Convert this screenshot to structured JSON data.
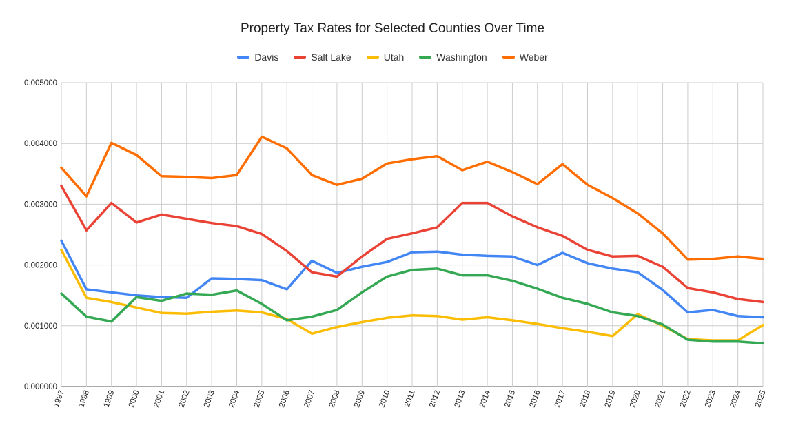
{
  "chart_data": {
    "type": "line",
    "title": "Property Tax Rates for Selected Counties Over Time",
    "xlabel": "",
    "ylabel": "",
    "x": [
      "1997",
      "1998",
      "1999",
      "2000",
      "2001",
      "2002",
      "2003",
      "2004",
      "2005",
      "2006",
      "2007",
      "2008",
      "2009",
      "2010",
      "2011",
      "2012",
      "2013",
      "2014",
      "2015",
      "2016",
      "2017",
      "2018",
      "2019",
      "2020",
      "2021",
      "2022",
      "2023",
      "2024",
      "2025"
    ],
    "ylim": [
      0,
      0.005
    ],
    "yticks": [
      "0.000000",
      "0.001000",
      "0.002000",
      "0.003000",
      "0.004000",
      "0.005000"
    ],
    "grid": true,
    "legend_position": "top",
    "series": [
      {
        "name": "Davis",
        "color": "#4285F4",
        "values": [
          0.0024,
          0.0016,
          0.00155,
          0.0015,
          0.00147,
          0.00146,
          0.00178,
          0.00177,
          0.00175,
          0.0016,
          0.00207,
          0.00187,
          0.00197,
          0.00205,
          0.00221,
          0.00222,
          0.00217,
          0.00215,
          0.00214,
          0.002,
          0.0022,
          0.00203,
          0.00194,
          0.00188,
          0.00159,
          0.00122,
          0.00126,
          0.00116,
          0.00114
        ]
      },
      {
        "name": "Salt Lake",
        "color": "#EA4335",
        "values": [
          0.0033,
          0.00257,
          0.00302,
          0.0027,
          0.00283,
          0.00276,
          0.00269,
          0.00264,
          0.00251,
          0.00223,
          0.00188,
          0.00181,
          0.00214,
          0.00243,
          0.00252,
          0.00262,
          0.00302,
          0.00302,
          0.0028,
          0.00262,
          0.00248,
          0.00225,
          0.00214,
          0.00215,
          0.00197,
          0.00162,
          0.00155,
          0.00144,
          0.00139
        ]
      },
      {
        "name": "Utah",
        "color": "#FBBC04",
        "values": [
          0.00225,
          0.00146,
          0.00139,
          0.0013,
          0.00121,
          0.0012,
          0.00123,
          0.00125,
          0.00122,
          0.00111,
          0.00087,
          0.00098,
          0.00106,
          0.00113,
          0.00117,
          0.00116,
          0.0011,
          0.00114,
          0.00109,
          0.00103,
          0.00096,
          0.0009,
          0.00083,
          0.00119,
          0.001,
          0.00078,
          0.00076,
          0.00076,
          0.00101
        ]
      },
      {
        "name": "Washington",
        "color": "#34A853",
        "values": [
          0.00153,
          0.00115,
          0.00107,
          0.00147,
          0.00141,
          0.00153,
          0.00151,
          0.00158,
          0.00136,
          0.00109,
          0.00115,
          0.00126,
          0.00155,
          0.00181,
          0.00192,
          0.00194,
          0.00183,
          0.00183,
          0.00174,
          0.00161,
          0.00146,
          0.00136,
          0.00122,
          0.00116,
          0.00102,
          0.00077,
          0.00074,
          0.00074,
          0.00071
        ]
      },
      {
        "name": "Weber",
        "color": "#FF6D01",
        "values": [
          0.0036,
          0.00313,
          0.00401,
          0.00381,
          0.00346,
          0.00345,
          0.00343,
          0.00348,
          0.00411,
          0.00392,
          0.00348,
          0.00332,
          0.00342,
          0.00367,
          0.00374,
          0.00379,
          0.00356,
          0.0037,
          0.00353,
          0.00333,
          0.00366,
          0.00332,
          0.0031,
          0.00285,
          0.00252,
          0.00209,
          0.0021,
          0.00214,
          0.0021
        ]
      }
    ]
  }
}
